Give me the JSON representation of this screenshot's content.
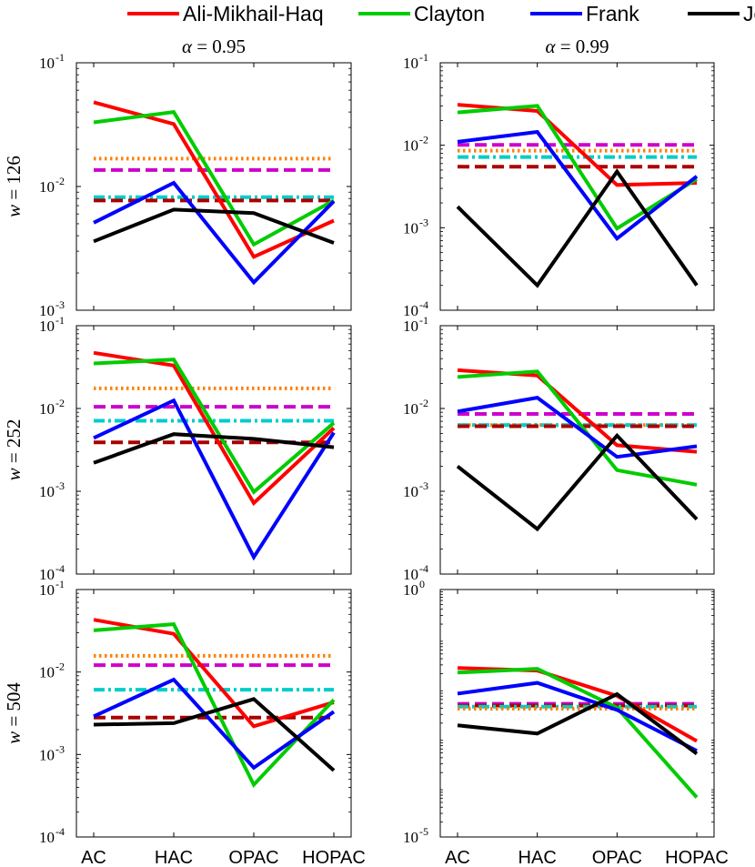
{
  "chart_data": {
    "type": "line",
    "legend": [
      {
        "name": "Ali-Mikhail-Haq",
        "color": "#ff0000"
      },
      {
        "name": "Clayton",
        "color": "#00cc00"
      },
      {
        "name": "Frank",
        "color": "#0000ff"
      },
      {
        "name": "Joe",
        "color": "#000000"
      }
    ],
    "categories": [
      "AC",
      "HAC",
      "OPAC",
      "HOPAC"
    ],
    "column_titles": [
      {
        "symbol": "α",
        "rest": " = 0.95"
      },
      {
        "symbol": "α",
        "rest": " = 0.99"
      }
    ],
    "row_titles": [
      {
        "symbol": "w",
        "rest": " = 126"
      },
      {
        "symbol": "w",
        "rest": " = 252"
      },
      {
        "symbol": "w",
        "rest": " = 504"
      }
    ],
    "y_scale": "log",
    "panels": [
      {
        "row": 0,
        "col": 0,
        "ylim": [
          0.001,
          0.1
        ],
        "ticks": [
          {
            "base": "10",
            "exp": "-1",
            "value": 0.1
          },
          {
            "base": "10",
            "exp": "-2",
            "value": 0.01
          },
          {
            "base": "10",
            "exp": "-3",
            "value": 0.001
          }
        ],
        "series": [
          {
            "name": "Ali-Mikhail-Haq",
            "values": [
              0.048,
              0.032,
              0.0027,
              0.0053
            ]
          },
          {
            "name": "Clayton",
            "values": [
              0.033,
              0.04,
              0.0034,
              0.0077
            ]
          },
          {
            "name": "Frank",
            "values": [
              0.0051,
              0.0107,
              0.00168,
              0.0076
            ]
          },
          {
            "name": "Joe",
            "values": [
              0.0036,
              0.0065,
              0.0061,
              0.0035
            ]
          }
        ],
        "reference_lines": [
          {
            "style": "dotted",
            "color": "#ff8000",
            "value": 0.0168
          },
          {
            "style": "dashed",
            "color": "#cc00cc",
            "value": 0.0136
          },
          {
            "style": "dashdot",
            "color": "#00cccc",
            "value": 0.0082
          },
          {
            "style": "dashed",
            "color": "#aa0000",
            "value": 0.0077
          }
        ]
      },
      {
        "row": 0,
        "col": 1,
        "ylim": [
          0.0001,
          0.1
        ],
        "ticks": [
          {
            "base": "10",
            "exp": "-1",
            "value": 0.1
          },
          {
            "base": "10",
            "exp": "-2",
            "value": 0.01
          },
          {
            "base": "10",
            "exp": "-3",
            "value": 0.001
          },
          {
            "base": "10",
            "exp": "-4",
            "value": 0.0001
          }
        ],
        "series": [
          {
            "name": "Ali-Mikhail-Haq",
            "values": [
              0.031,
              0.026,
              0.0033,
              0.0035
            ]
          },
          {
            "name": "Clayton",
            "values": [
              0.025,
              0.03,
              0.00098,
              0.0039
            ]
          },
          {
            "name": "Frank",
            "values": [
              0.011,
              0.0145,
              0.00074,
              0.0042
            ]
          },
          {
            "name": "Joe",
            "values": [
              0.0018,
              0.0002,
              0.0048,
              0.0002
            ]
          }
        ],
        "reference_lines": [
          {
            "style": "dashed",
            "color": "#cc00cc",
            "value": 0.0101
          },
          {
            "style": "dotted",
            "color": "#ff8000",
            "value": 0.0086
          },
          {
            "style": "dashdot",
            "color": "#00cccc",
            "value": 0.0072
          },
          {
            "style": "dashed",
            "color": "#aa0000",
            "value": 0.0055
          }
        ]
      },
      {
        "row": 1,
        "col": 0,
        "ylim": [
          0.0001,
          0.1
        ],
        "ticks": [
          {
            "base": "10",
            "exp": "-1",
            "value": 0.1
          },
          {
            "base": "10",
            "exp": "-2",
            "value": 0.01
          },
          {
            "base": "10",
            "exp": "-3",
            "value": 0.001
          },
          {
            "base": "10",
            "exp": "-4",
            "value": 0.0001
          }
        ],
        "series": [
          {
            "name": "Ali-Mikhail-Haq",
            "values": [
              0.047,
              0.033,
              0.00072,
              0.0058
            ]
          },
          {
            "name": "Clayton",
            "values": [
              0.035,
              0.039,
              0.00098,
              0.0067
            ]
          },
          {
            "name": "Frank",
            "values": [
              0.0044,
              0.0125,
              0.00016,
              0.0051
            ]
          },
          {
            "name": "Joe",
            "values": [
              0.0022,
              0.0049,
              0.0043,
              0.0034
            ]
          }
        ],
        "reference_lines": [
          {
            "style": "dotted",
            "color": "#ff8000",
            "value": 0.0175
          },
          {
            "style": "dashed",
            "color": "#cc00cc",
            "value": 0.0105
          },
          {
            "style": "dashdot",
            "color": "#00cccc",
            "value": 0.0071
          },
          {
            "style": "dashed",
            "color": "#aa0000",
            "value": 0.0039
          }
        ]
      },
      {
        "row": 1,
        "col": 1,
        "ylim": [
          0.0001,
          0.1
        ],
        "ticks": [
          {
            "base": "10",
            "exp": "-1",
            "value": 0.1
          },
          {
            "base": "10",
            "exp": "-2",
            "value": 0.01
          },
          {
            "base": "10",
            "exp": "-3",
            "value": 0.001
          },
          {
            "base": "10",
            "exp": "-4",
            "value": 0.0001
          }
        ],
        "series": [
          {
            "name": "Ali-Mikhail-Haq",
            "values": [
              0.029,
              0.025,
              0.0036,
              0.003
            ]
          },
          {
            "name": "Clayton",
            "values": [
              0.024,
              0.028,
              0.0018,
              0.0012
            ]
          },
          {
            "name": "Frank",
            "values": [
              0.0092,
              0.0135,
              0.0026,
              0.0035
            ]
          },
          {
            "name": "Joe",
            "values": [
              0.002,
              0.00035,
              0.0047,
              0.00046
            ]
          }
        ],
        "reference_lines": [
          {
            "style": "dashed",
            "color": "#cc00cc",
            "value": 0.0086
          },
          {
            "style": "dotted",
            "color": "#ff8000",
            "value": 0.0063
          },
          {
            "style": "dashdot",
            "color": "#00cccc",
            "value": 0.0063
          },
          {
            "style": "dashed",
            "color": "#aa0000",
            "value": 0.0061
          }
        ]
      },
      {
        "row": 2,
        "col": 0,
        "ylim": [
          0.0001,
          0.1
        ],
        "ticks": [
          {
            "base": "10",
            "exp": "-1",
            "value": 0.1
          },
          {
            "base": "10",
            "exp": "-2",
            "value": 0.01
          },
          {
            "base": "10",
            "exp": "-3",
            "value": 0.001
          },
          {
            "base": "10",
            "exp": "-4",
            "value": 0.0001
          }
        ],
        "series": [
          {
            "name": "Ali-Mikhail-Haq",
            "values": [
              0.043,
              0.029,
              0.0022,
              0.0043
            ]
          },
          {
            "name": "Clayton",
            "values": [
              0.032,
              0.038,
              0.00043,
              0.0046
            ]
          },
          {
            "name": "Frank",
            "values": [
              0.0029,
              0.0081,
              0.00069,
              0.0033
            ]
          },
          {
            "name": "Joe",
            "values": [
              0.0023,
              0.0024,
              0.0047,
              0.00064
            ]
          }
        ],
        "reference_lines": [
          {
            "style": "dotted",
            "color": "#ff8000",
            "value": 0.0157
          },
          {
            "style": "dashed",
            "color": "#cc00cc",
            "value": 0.0121
          },
          {
            "style": "dashdot",
            "color": "#00cccc",
            "value": 0.0061
          },
          {
            "style": "dashed",
            "color": "#aa0000",
            "value": 0.0028
          }
        ]
      },
      {
        "row": 2,
        "col": 1,
        "ylim": [
          1e-05,
          1
        ],
        "ticks": [
          {
            "base": "10",
            "exp": "0",
            "value": 1
          },
          {
            "base": "10",
            "exp": "-5",
            "value": 1e-05
          }
        ],
        "series": [
          {
            "name": "Ali-Mikhail-Haq",
            "values": [
              0.026,
              0.023,
              0.0071,
              0.00087
            ]
          },
          {
            "name": "Clayton",
            "values": [
              0.021,
              0.025,
              0.0041,
              6.3e-05
            ]
          },
          {
            "name": "Frank",
            "values": [
              0.0079,
              0.013,
              0.0037,
              0.00055
            ]
          },
          {
            "name": "Joe",
            "values": [
              0.0018,
              0.00123,
              0.0077,
              0.00048
            ]
          }
        ],
        "reference_lines": [
          {
            "style": "dashed",
            "color": "#cc00cc",
            "value": 0.0049
          },
          {
            "style": "dashed",
            "color": "#aa0000",
            "value": 0.0045
          },
          {
            "style": "dashdot",
            "color": "#00cccc",
            "value": 0.0043
          },
          {
            "style": "dotted",
            "color": "#ff8000",
            "value": 0.0039
          }
        ]
      }
    ]
  }
}
